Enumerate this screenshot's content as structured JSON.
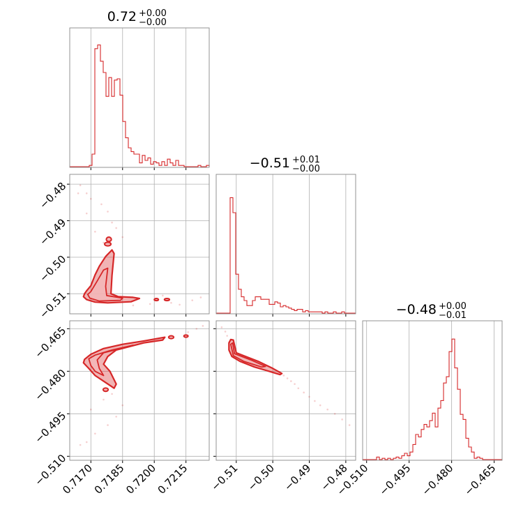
{
  "chart_data": {
    "type": "corner",
    "color": "#d62728",
    "parameters": [
      {
        "title_value": "0.72",
        "title_plus": "+0.00",
        "title_minus": "−0.00",
        "range": [
          0.716,
          0.7226
        ],
        "ticks": [
          0.717,
          0.7185,
          0.72,
          0.7215
        ],
        "tick_labels": [
          "0.7170",
          "0.7185",
          "0.7200",
          "0.7215"
        ],
        "hist": [
          0,
          0,
          0,
          0,
          0,
          0,
          0,
          0.01,
          0.1,
          0.94,
          0.97,
          0.84,
          0.75,
          0.56,
          0.71,
          0.56,
          0.69,
          0.7,
          0.57,
          0.36,
          0.23,
          0.15,
          0.12,
          0.1,
          0.1,
          0.03,
          0.09,
          0.05,
          0.07,
          0.02,
          0.04,
          0.03,
          0.01,
          0.04,
          0.01,
          0.06,
          0.03,
          0.01,
          0.05,
          0.01,
          0.01,
          0,
          0,
          0,
          0,
          0,
          0.01,
          0,
          0,
          0.01
        ]
      },
      {
        "title_value": "−0.51",
        "title_plus": "+0.01",
        "title_minus": "−0.00",
        "range": [
          -0.5155,
          -0.4773
        ],
        "ticks": [
          -0.51,
          -0.5,
          -0.49,
          -0.48
        ],
        "tick_labels": [
          "−0.51",
          "−0.50",
          "−0.49",
          "−0.48"
        ],
        "hist": [
          0,
          0,
          0,
          0,
          0,
          0.92,
          0.8,
          0.31,
          0.19,
          0.13,
          0.1,
          0.06,
          0.06,
          0.1,
          0.13,
          0.13,
          0.11,
          0.11,
          0.11,
          0.07,
          0.07,
          0.09,
          0.08,
          0.05,
          0.06,
          0.05,
          0.04,
          0.03,
          0.02,
          0.03,
          0.03,
          0.01,
          0.02,
          0.01,
          0.01,
          0.01,
          0.01,
          0.01,
          0,
          0.01,
          0,
          0,
          0.01,
          0,
          0,
          0.01,
          0,
          0,
          0,
          0
        ]
      },
      {
        "title_value": "−0.48",
        "title_plus": "+0.00",
        "title_minus": "−0.01",
        "range": [
          -0.5114,
          -0.4622
        ],
        "ticks": [
          -0.51,
          -0.495,
          -0.48,
          -0.465
        ],
        "tick_labels": [
          "−0.510",
          "−0.495",
          "−0.480",
          "−0.465"
        ],
        "hist": [
          0,
          0,
          0,
          0,
          0,
          0.02,
          0,
          0.01,
          0,
          0.01,
          0,
          0.01,
          0.02,
          0.01,
          0.03,
          0.05,
          0.03,
          0.06,
          0.12,
          0.2,
          0.18,
          0.24,
          0.28,
          0.26,
          0.31,
          0.37,
          0.26,
          0.41,
          0.47,
          0.61,
          0.66,
          0.86,
          0.96,
          0.73,
          0.56,
          0.36,
          0.32,
          0.17,
          0.1,
          0.06,
          0.01,
          0.02,
          0.01,
          0,
          0,
          0,
          0,
          0,
          0,
          0
        ]
      }
    ],
    "contours": {
      "1_0": {
        "ranges": [
          [
            0.716,
            0.7226
          ],
          [
            -0.5155,
            -0.4773
          ]
        ],
        "outer": [
          [
            0.7167,
            -0.51
          ],
          [
            0.7168,
            -0.5092
          ],
          [
            0.717,
            -0.5078
          ],
          [
            0.7172,
            -0.5048
          ],
          [
            0.7174,
            -0.5025
          ],
          [
            0.7177,
            -0.4998
          ],
          [
            0.718,
            -0.498
          ],
          [
            0.7181,
            -0.499
          ],
          [
            0.718,
            -0.505
          ],
          [
            0.71795,
            -0.51
          ],
          [
            0.7183,
            -0.5108
          ],
          [
            0.719,
            -0.511
          ],
          [
            0.7193,
            -0.5113
          ],
          [
            0.7189,
            -0.5122
          ],
          [
            0.7178,
            -0.5125
          ],
          [
            0.7172,
            -0.5123
          ],
          [
            0.7168,
            -0.5116
          ],
          [
            0.71665,
            -0.5108
          ]
        ],
        "inner": [
          [
            0.71685,
            -0.5102
          ],
          [
            0.717,
            -0.5094
          ],
          [
            0.7173,
            -0.5065
          ],
          [
            0.7176,
            -0.5035
          ],
          [
            0.7178,
            -0.503
          ],
          [
            0.7177,
            -0.508
          ],
          [
            0.71775,
            -0.5105
          ],
          [
            0.7185,
            -0.5112
          ],
          [
            0.7184,
            -0.5118
          ],
          [
            0.7174,
            -0.512
          ],
          [
            0.71695,
            -0.5112
          ]
        ],
        "islands": [
          [
            0.71785,
            -0.4951,
            0.00012,
            0.0006
          ],
          [
            0.7178,
            -0.4964,
            0.00015,
            0.0005
          ],
          [
            0.7201,
            -0.5116,
            0.0001,
            0.0003
          ],
          [
            0.7206,
            -0.5116,
            0.00012,
            0.0003
          ]
        ],
        "scatter": [
          [
            0.7165,
            -0.4803
          ],
          [
            0.7164,
            -0.4825
          ],
          [
            0.7168,
            -0.4825
          ],
          [
            0.717,
            -0.484
          ],
          [
            0.7175,
            -0.4855
          ],
          [
            0.7178,
            -0.4875
          ],
          [
            0.718,
            -0.4905
          ],
          [
            0.7182,
            -0.492
          ],
          [
            0.7185,
            -0.4945
          ],
          [
            0.7168,
            -0.488
          ],
          [
            0.7172,
            -0.493
          ],
          [
            0.7176,
            -0.496
          ],
          [
            0.7204,
            -0.5105
          ],
          [
            0.7208,
            -0.5125
          ],
          [
            0.7212,
            -0.513
          ],
          [
            0.7218,
            -0.5118
          ],
          [
            0.7222,
            -0.511
          ],
          [
            0.7198,
            -0.5128
          ],
          [
            0.719,
            -0.5132
          ]
        ]
      },
      "2_0": {
        "ranges": [
          [
            0.716,
            0.7226
          ],
          [
            -0.5114,
            -0.4622
          ]
        ],
        "outer": [
          [
            0.7167,
            -0.4758
          ],
          [
            0.717,
            -0.474
          ],
          [
            0.7176,
            -0.472
          ],
          [
            0.7185,
            -0.4705
          ],
          [
            0.7195,
            -0.4693
          ],
          [
            0.7205,
            -0.468
          ],
          [
            0.7204,
            -0.469
          ],
          [
            0.7195,
            -0.47
          ],
          [
            0.7182,
            -0.4725
          ],
          [
            0.7178,
            -0.4748
          ],
          [
            0.7176,
            -0.4775
          ],
          [
            0.7179,
            -0.48
          ],
          [
            0.7182,
            -0.4845
          ],
          [
            0.7181,
            -0.486
          ],
          [
            0.7177,
            -0.484
          ],
          [
            0.7172,
            -0.4815
          ],
          [
            0.7169,
            -0.479
          ],
          [
            0.71665,
            -0.477
          ]
        ],
        "inner": [
          [
            0.7169,
            -0.4756
          ],
          [
            0.7172,
            -0.4743
          ],
          [
            0.718,
            -0.4725
          ],
          [
            0.719,
            -0.4708
          ],
          [
            0.7187,
            -0.4715
          ],
          [
            0.7176,
            -0.4735
          ],
          [
            0.7173,
            -0.476
          ],
          [
            0.7174,
            -0.479
          ],
          [
            0.7176,
            -0.4815
          ],
          [
            0.7172,
            -0.48
          ],
          [
            0.717,
            -0.478
          ]
        ],
        "islands": [
          [
            0.7208,
            -0.468,
            0.00012,
            0.0005
          ],
          [
            0.7215,
            -0.4676,
            0.0001,
            0.0004
          ],
          [
            0.7177,
            -0.4865,
            0.00012,
            0.0006
          ]
        ],
        "scatter": [
          [
            0.7165,
            -0.506
          ],
          [
            0.7168,
            -0.505
          ],
          [
            0.7172,
            -0.502
          ],
          [
            0.7178,
            -0.499
          ],
          [
            0.7182,
            -0.496
          ],
          [
            0.7185,
            -0.492
          ],
          [
            0.7176,
            -0.49
          ],
          [
            0.718,
            -0.488
          ],
          [
            0.717,
            -0.4935
          ],
          [
            0.722,
            -0.465
          ],
          [
            0.7223,
            -0.464
          ],
          [
            0.7216,
            -0.4662
          ]
        ]
      },
      "2_1": {
        "ranges": [
          [
            -0.5155,
            -0.4773
          ],
          [
            -0.5114,
            -0.4622
          ]
        ],
        "outer": [
          [
            -0.512,
            -0.47
          ],
          [
            -0.5115,
            -0.4688
          ],
          [
            -0.5108,
            -0.469
          ],
          [
            -0.51,
            -0.4735
          ],
          [
            -0.508,
            -0.4745
          ],
          [
            -0.504,
            -0.4765
          ],
          [
            -0.5,
            -0.479
          ],
          [
            -0.4975,
            -0.4808
          ],
          [
            -0.498,
            -0.4812
          ],
          [
            -0.501,
            -0.48
          ],
          [
            -0.505,
            -0.4785
          ],
          [
            -0.509,
            -0.4765
          ],
          [
            -0.5112,
            -0.4748
          ],
          [
            -0.512,
            -0.4725
          ]
        ],
        "inner": [
          [
            -0.5115,
            -0.4705
          ],
          [
            -0.511,
            -0.47
          ],
          [
            -0.5105,
            -0.4738
          ],
          [
            -0.506,
            -0.476
          ],
          [
            -0.502,
            -0.4783
          ],
          [
            -0.503,
            -0.4785
          ],
          [
            -0.508,
            -0.4765
          ],
          [
            -0.5108,
            -0.4745
          ]
        ],
        "islands": [],
        "scatter": [
          [
            -0.497,
            -0.4815
          ],
          [
            -0.496,
            -0.4825
          ],
          [
            -0.495,
            -0.4835
          ],
          [
            -0.494,
            -0.4845
          ],
          [
            -0.493,
            -0.486
          ],
          [
            -0.4915,
            -0.4875
          ],
          [
            -0.49,
            -0.489
          ],
          [
            -0.4885,
            -0.4905
          ],
          [
            -0.487,
            -0.492
          ],
          [
            -0.485,
            -0.4935
          ],
          [
            -0.483,
            -0.495
          ],
          [
            -0.481,
            -0.497
          ],
          [
            -0.514,
            -0.4645
          ],
          [
            -0.513,
            -0.466
          ],
          [
            -0.5125,
            -0.4675
          ],
          [
            -0.479,
            -0.499
          ]
        ]
      }
    }
  }
}
